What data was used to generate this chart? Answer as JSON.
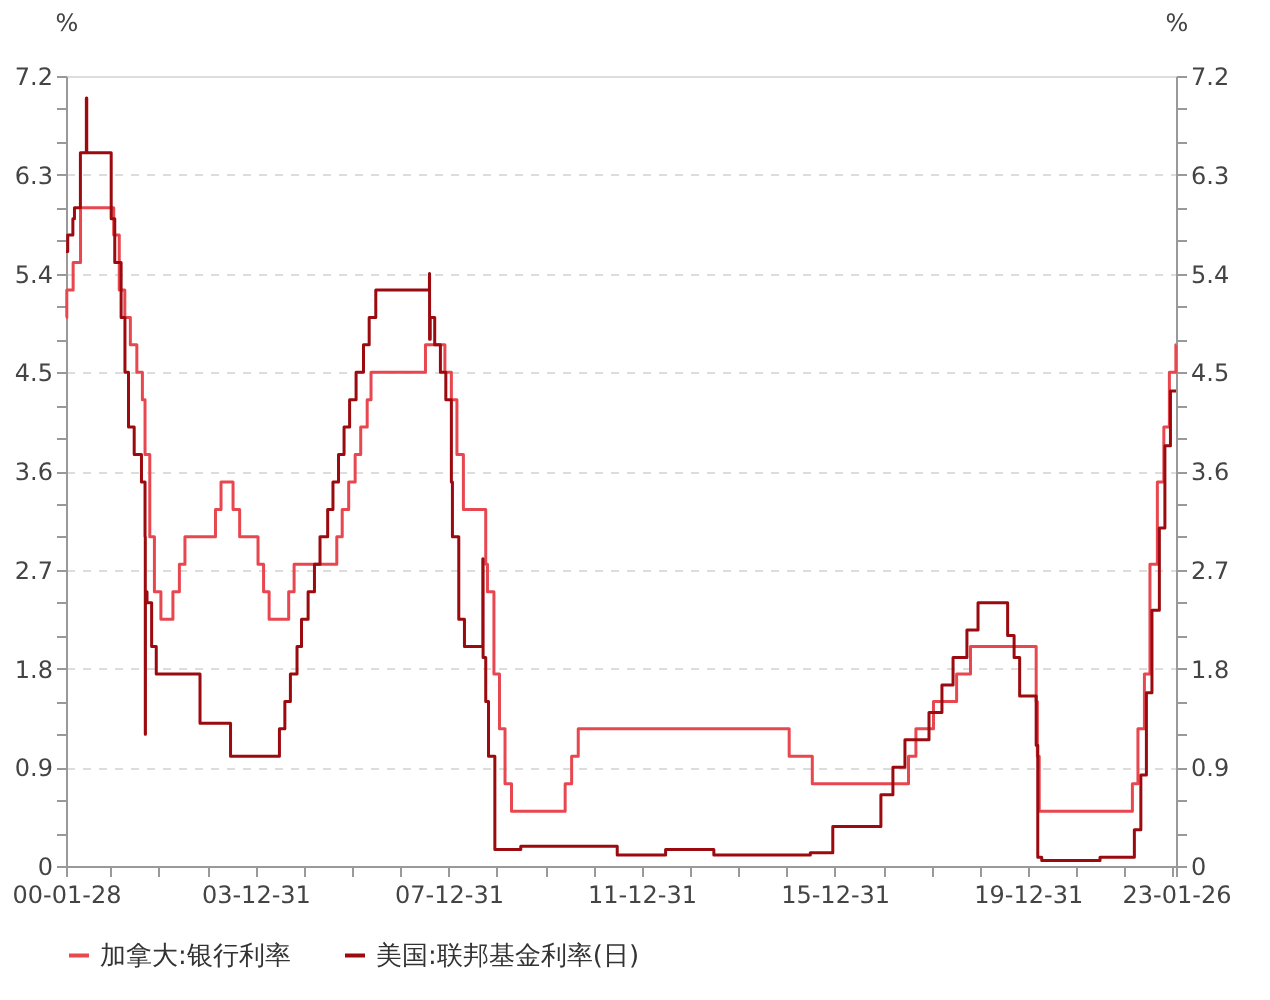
{
  "chart_data": {
    "type": "step",
    "ylabel": "%",
    "y2label": "%",
    "xlim": [
      "2000-01-28",
      "2023-01-26"
    ],
    "xticks": [
      {
        "value": "2000-01-28",
        "label": "00-01-28"
      },
      {
        "value": "2000-12-31",
        "label": null
      },
      {
        "value": "2001-12-31",
        "label": null
      },
      {
        "value": "2002-12-31",
        "label": null
      },
      {
        "value": "2003-12-31",
        "label": "03-12-31"
      },
      {
        "value": "2004-12-31",
        "label": null
      },
      {
        "value": "2005-12-31",
        "label": null
      },
      {
        "value": "2006-12-31",
        "label": null
      },
      {
        "value": "2007-12-31",
        "label": "07-12-31"
      },
      {
        "value": "2008-12-31",
        "label": null
      },
      {
        "value": "2009-12-31",
        "label": null
      },
      {
        "value": "2010-12-31",
        "label": null
      },
      {
        "value": "2011-12-31",
        "label": "11-12-31"
      },
      {
        "value": "2012-12-31",
        "label": null
      },
      {
        "value": "2013-12-31",
        "label": null
      },
      {
        "value": "2014-12-31",
        "label": null
      },
      {
        "value": "2015-12-31",
        "label": "15-12-31"
      },
      {
        "value": "2016-12-31",
        "label": null
      },
      {
        "value": "2017-12-31",
        "label": null
      },
      {
        "value": "2018-12-31",
        "label": null
      },
      {
        "value": "2019-12-31",
        "label": "19-12-31"
      },
      {
        "value": "2020-12-31",
        "label": null
      },
      {
        "value": "2021-12-31",
        "label": null
      },
      {
        "value": "2022-12-31",
        "label": null
      },
      {
        "value": "2023-01-26",
        "label": "23-01-26"
      }
    ],
    "ylim": [
      0,
      7.2
    ],
    "yticks": [
      0,
      {
        "value": 0.3,
        "label": null
      },
      {
        "value": 0.6,
        "label": null
      },
      0.9,
      {
        "value": 1.2,
        "label": null
      },
      {
        "value": 1.5,
        "label": null
      },
      1.8,
      {
        "value": 2.1,
        "label": null
      },
      {
        "value": 2.4,
        "label": null
      },
      2.7,
      {
        "value": 3.0,
        "label": null
      },
      {
        "value": 3.3,
        "label": null
      },
      3.6,
      {
        "value": 3.9,
        "label": null
      },
      {
        "value": 4.2,
        "label": null
      },
      4.5,
      {
        "value": 4.8,
        "label": null
      },
      {
        "value": 5.1,
        "label": null
      },
      5.4,
      {
        "value": 5.7,
        "label": null
      },
      {
        "value": 6.0,
        "label": null
      },
      6.3,
      {
        "value": 6.6,
        "label": null
      },
      {
        "value": 6.9,
        "label": null
      },
      7.2
    ],
    "y2lim": [
      0,
      7.2
    ],
    "y2ticks": [
      0,
      {
        "value": 0.3,
        "label": null
      },
      {
        "value": 0.6,
        "label": null
      },
      0.9,
      {
        "value": 1.2,
        "label": null
      },
      {
        "value": 1.5,
        "label": null
      },
      1.8,
      {
        "value": 2.1,
        "label": null
      },
      {
        "value": 2.4,
        "label": null
      },
      2.7,
      {
        "value": 3.0,
        "label": null
      },
      {
        "value": 3.3,
        "label": null
      },
      3.6,
      {
        "value": 3.9,
        "label": null
      },
      {
        "value": 4.2,
        "label": null
      },
      4.5,
      {
        "value": 4.8,
        "label": null
      },
      {
        "value": 5.1,
        "label": null
      },
      5.4,
      {
        "value": 5.7,
        "label": null
      },
      {
        "value": 6.0,
        "label": null
      },
      6.3,
      {
        "value": 6.6,
        "label": null
      },
      {
        "value": 6.9,
        "label": null
      },
      7.2
    ],
    "grid": "y",
    "legend": "bottom",
    "line_style": "solid",
    "marker": "none",
    "series": [
      {
        "name": "加拿大:银行利率",
        "color": "#e8474f",
        "x": [
          "2000-01-28",
          "2000-02-03",
          "2000-03-22",
          "2000-05-17",
          "2001-01-23",
          "2001-03-06",
          "2001-04-17",
          "2001-05-29",
          "2001-07-17",
          "2001-08-28",
          "2001-09-17",
          "2001-10-23",
          "2001-11-27",
          "2002-01-15",
          "2002-04-16",
          "2002-06-04",
          "2002-07-16",
          "2003-03-04",
          "2003-04-15",
          "2003-07-15",
          "2003-09-03",
          "2004-01-20",
          "2004-03-02",
          "2004-04-13",
          "2004-09-08",
          "2004-10-19",
          "2005-09-07",
          "2005-10-18",
          "2005-12-06",
          "2006-01-24",
          "2006-03-07",
          "2006-04-25",
          "2006-05-24",
          "2007-07-10",
          "2007-12-04",
          "2008-01-22",
          "2008-03-04",
          "2008-04-22",
          "2008-10-08",
          "2008-10-21",
          "2008-12-09",
          "2009-01-20",
          "2009-03-03",
          "2009-04-21",
          "2010-06-01",
          "2010-07-20",
          "2010-09-08",
          "2015-01-21",
          "2015-07-15",
          "2017-07-12",
          "2017-09-06",
          "2018-01-17",
          "2018-07-11",
          "2018-10-24",
          "2020-03-04",
          "2020-03-13",
          "2020-03-27",
          "2022-03-02",
          "2022-04-13",
          "2022-06-01",
          "2022-07-13",
          "2022-09-07",
          "2022-10-26",
          "2022-12-07",
          "2023-01-25",
          "2023-01-26"
        ],
        "values": [
          5.0,
          5.25,
          5.5,
          6.0,
          5.75,
          5.25,
          5.0,
          4.75,
          4.5,
          4.25,
          3.75,
          3.0,
          2.5,
          2.25,
          2.5,
          2.75,
          3.0,
          3.25,
          3.5,
          3.25,
          3.0,
          2.75,
          2.5,
          2.25,
          2.5,
          2.75,
          3.0,
          3.25,
          3.5,
          3.75,
          4.0,
          4.25,
          4.5,
          4.75,
          4.5,
          4.25,
          3.75,
          3.25,
          2.75,
          2.5,
          1.75,
          1.25,
          0.75,
          0.5,
          0.75,
          1.0,
          1.25,
          1.0,
          0.75,
          1.0,
          1.25,
          1.5,
          1.75,
          2.0,
          1.5,
          1.0,
          0.5,
          0.75,
          1.25,
          1.75,
          2.75,
          3.5,
          4.0,
          4.5,
          4.75,
          4.75
        ]
      },
      {
        "name": "美国:联邦基金利率(日)",
        "color": "#9b0a0f",
        "x": [
          "2000-01-28",
          "2000-02-10",
          "2000-03-20",
          "2000-04-01",
          "2000-05-16",
          "2000-06-30",
          "2000-07-03",
          "2001-01-04",
          "2001-01-31",
          "2001-03-20",
          "2001-04-18",
          "2001-05-15",
          "2001-06-27",
          "2001-08-21",
          "2001-09-17",
          "2001-09-19",
          "2001-09-20",
          "2001-10-02",
          "2001-11-06",
          "2001-12-11",
          "2002-11-07",
          "2003-06-26",
          "2004-06-30",
          "2004-08-10",
          "2004-09-21",
          "2004-11-10",
          "2004-12-14",
          "2005-02-02",
          "2005-03-22",
          "2005-05-03",
          "2005-06-30",
          "2005-08-09",
          "2005-09-20",
          "2005-11-01",
          "2005-12-13",
          "2006-01-31",
          "2006-03-28",
          "2006-05-10",
          "2006-06-29",
          "2007-08-09",
          "2007-08-10",
          "2007-08-15",
          "2007-09-18",
          "2007-10-31",
          "2007-12-11",
          "2008-01-22",
          "2008-01-30",
          "2008-03-18",
          "2008-04-30",
          "2008-09-16",
          "2008-09-18",
          "2008-10-08",
          "2008-10-29",
          "2008-12-16",
          "2009-06-30",
          "2010-06-30",
          "2011-06-30",
          "2012-06-30",
          "2013-06-30",
          "2014-06-30",
          "2015-06-30",
          "2015-12-17",
          "2016-12-15",
          "2017-03-16",
          "2017-06-15",
          "2017-12-14",
          "2018-03-22",
          "2018-06-14",
          "2018-09-27",
          "2018-12-20",
          "2019-08-01",
          "2019-09-19",
          "2019-10-31",
          "2020-03-04",
          "2020-03-16",
          "2020-04-15",
          "2021-06-30",
          "2022-03-17",
          "2022-05-05",
          "2022-06-16",
          "2022-07-28",
          "2022-09-22",
          "2022-11-03",
          "2022-12-15",
          "2023-01-26"
        ],
        "values": [
          5.6,
          5.75,
          5.9,
          6.0,
          6.5,
          7.0,
          6.5,
          5.9,
          5.5,
          5.0,
          4.5,
          4.0,
          3.75,
          3.5,
          3.0,
          1.2,
          2.5,
          2.4,
          2.0,
          1.75,
          1.3,
          1.0,
          1.25,
          1.5,
          1.75,
          2.0,
          2.25,
          2.5,
          2.75,
          3.0,
          3.25,
          3.5,
          3.75,
          4.0,
          4.25,
          4.5,
          4.75,
          5.0,
          5.25,
          5.4,
          4.8,
          5.0,
          4.75,
          4.5,
          4.25,
          3.5,
          3.0,
          2.25,
          2.0,
          2.8,
          1.9,
          1.5,
          1.0,
          0.15,
          0.18,
          0.18,
          0.1,
          0.15,
          0.1,
          0.1,
          0.12,
          0.36,
          0.65,
          0.9,
          1.15,
          1.4,
          1.65,
          1.9,
          2.15,
          2.4,
          2.1,
          1.9,
          1.55,
          1.1,
          0.08,
          0.05,
          0.08,
          0.33,
          0.83,
          1.58,
          2.33,
          3.08,
          3.83,
          4.33,
          4.33
        ]
      }
    ]
  }
}
